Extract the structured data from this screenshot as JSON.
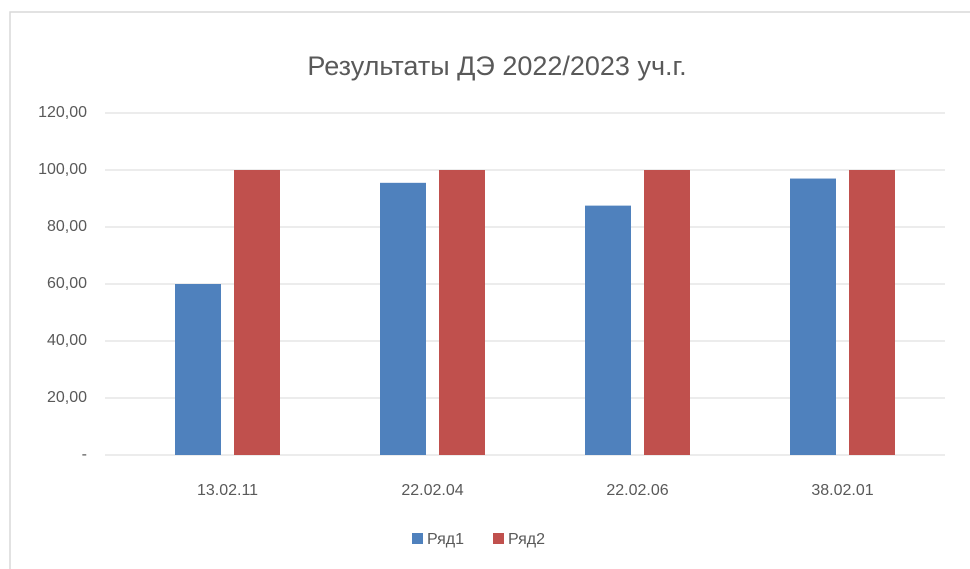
{
  "chart_data": {
    "type": "bar",
    "title": "Результаты ДЭ 2022/2023 уч.г.",
    "categories": [
      "13.02.11",
      "22.02.04",
      "22.02.06",
      "38.02.01"
    ],
    "series": [
      {
        "name": "Ряд1",
        "color": "#4f81bd",
        "values": [
          60,
          95.5,
          87.5,
          97
        ]
      },
      {
        "name": "Ряд2",
        "color": "#c0504d",
        "values": [
          100,
          100,
          100,
          100
        ]
      }
    ],
    "ylim": [
      0,
      120
    ],
    "yticks": [
      {
        "value": 0,
        "label": "-"
      },
      {
        "value": 20,
        "label": "20,00"
      },
      {
        "value": 40,
        "label": "40,00"
      },
      {
        "value": 60,
        "label": "60,00"
      },
      {
        "value": 80,
        "label": "80,00"
      },
      {
        "value": 100,
        "label": "100,00"
      },
      {
        "value": 120,
        "label": "120,00"
      }
    ],
    "grid": true,
    "legend": "bottom"
  }
}
